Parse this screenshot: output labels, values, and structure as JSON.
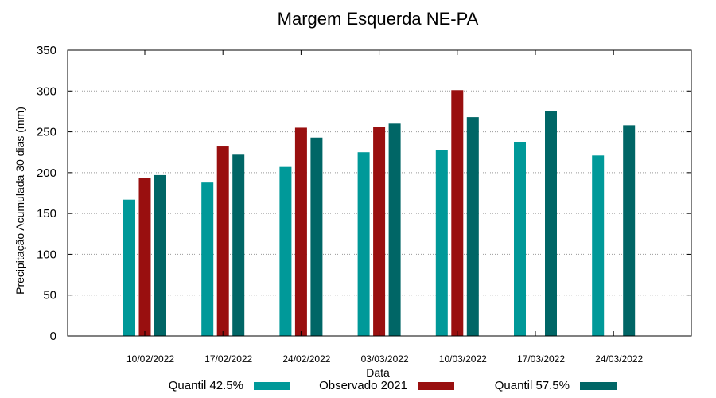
{
  "chart_data": {
    "type": "bar",
    "title": "Margem Esquerda NE-PA",
    "xlabel": "Data",
    "ylabel": "Precipitação Acumulada 30 dias (mm)",
    "ylim": [
      0,
      350
    ],
    "yticks": [
      0,
      50,
      100,
      150,
      200,
      250,
      300,
      350
    ],
    "grid": true,
    "categories": [
      "10/02/2022",
      "17/02/2022",
      "24/02/2022",
      "03/03/2022",
      "10/03/2022",
      "17/03/2022",
      "24/03/2022"
    ],
    "series": [
      {
        "name": "Quantil 42.5%",
        "color": "#009999",
        "values": [
          167,
          188,
          207,
          225,
          228,
          237,
          221
        ]
      },
      {
        "name": "Observado 2021",
        "color": "#990f0f",
        "values": [
          194,
          232,
          255,
          256,
          301,
          null,
          null
        ]
      },
      {
        "name": "Quantil 57.5%",
        "color": "#006666",
        "values": [
          197,
          222,
          243,
          260,
          268,
          275,
          258
        ]
      }
    ]
  }
}
